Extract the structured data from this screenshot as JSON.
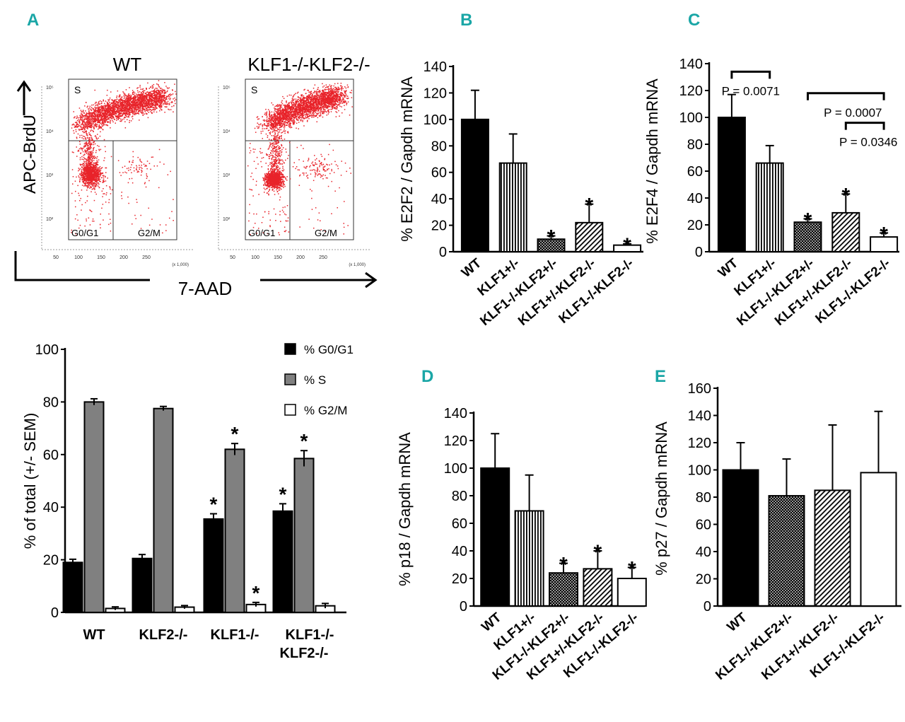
{
  "panel_letters": {
    "a": "A",
    "b": "B",
    "c": "C",
    "d": "D",
    "e": "E"
  },
  "colors": {
    "accent": "#1aa6a6",
    "dots": "#e8232a",
    "bar_dark": "#000000",
    "bar_gray": "#808080"
  },
  "flow": {
    "wt_title": "WT",
    "ko_title": "KLF1-/-KLF2-/-",
    "y_axis_label": "APC-BrdU",
    "x_axis_label": "7-AAD",
    "x_ticks": [
      "50",
      "100",
      "150",
      "200",
      "250"
    ],
    "y_ticks": [
      "10²",
      "10³",
      "10⁴",
      "10⁵"
    ],
    "x_scale_note": "(x 1,000)",
    "gate_s": "S",
    "gate_g0g1": "G0/G1",
    "gate_g2m": "G2/M"
  },
  "chart_data": [
    {
      "id": "A-bottom",
      "type": "bar",
      "ylabel": "% of total (+/- SEM)",
      "xlabel": "",
      "ylim": [
        0,
        100
      ],
      "yticks": [
        0,
        20,
        40,
        60,
        80,
        100
      ],
      "categories": [
        "WT",
        "KLF2-/-",
        "KLF1-/-",
        "KLF1-/-\nKLF2-/-"
      ],
      "legend_position": "top-right",
      "series": [
        {
          "name": "% G0/G1",
          "fill": "black",
          "values": [
            19,
            20.5,
            35.5,
            38.5
          ],
          "errors": [
            1.2,
            1.5,
            2,
            2.8
          ],
          "asterisk": [
            false,
            false,
            true,
            true
          ]
        },
        {
          "name": "% S",
          "fill": "gray",
          "values": [
            80,
            77.5,
            62,
            58.5
          ],
          "errors": [
            1.2,
            0.8,
            2.2,
            3
          ],
          "asterisk": [
            false,
            false,
            true,
            true
          ]
        },
        {
          "name": "% G2/M",
          "fill": "white",
          "values": [
            1.5,
            2,
            3,
            2.5
          ],
          "errors": [
            0.6,
            0.6,
            0.8,
            0.9
          ],
          "asterisk": [
            false,
            false,
            true,
            false
          ]
        }
      ]
    },
    {
      "id": "B",
      "type": "bar",
      "ylabel": "% E2F2  / Gapdh mRNA",
      "ylim": [
        0,
        140
      ],
      "yticks": [
        0,
        20,
        40,
        60,
        80,
        100,
        120,
        140
      ],
      "categories": [
        "WT",
        "KLF1+/-",
        "KLF1-/-KLF2+/-",
        "KLF1+/-KLF2-/-",
        "KLF1-/-KLF2-/-"
      ],
      "values": [
        100,
        67,
        9.5,
        22,
        5
      ],
      "errors": [
        22,
        22,
        2.5,
        14,
        1
      ],
      "fills": [
        "black",
        "vertical",
        "dots",
        "diagonal",
        "white"
      ],
      "asterisk": [
        false,
        false,
        true,
        true,
        true
      ]
    },
    {
      "id": "C",
      "type": "bar",
      "ylabel": "% E2F4  / Gapdh mRNA",
      "ylim": [
        0,
        140
      ],
      "yticks": [
        0,
        20,
        40,
        60,
        80,
        100,
        120,
        140
      ],
      "categories": [
        "WT",
        "KLF1+/-",
        "KLF1-/-KLF2+/-",
        "KLF1+/-KLF2-/-",
        "KLF1-/-KLF2-/-"
      ],
      "values": [
        100,
        66,
        22,
        29,
        11
      ],
      "errors": [
        17,
        13,
        2.5,
        14,
        3
      ],
      "fills": [
        "black",
        "vertical",
        "dots",
        "diagonal",
        "white"
      ],
      "asterisk": [
        false,
        false,
        true,
        true,
        true
      ],
      "annotations": [
        {
          "from": 0,
          "to": 1,
          "bracket_y": 134,
          "text": "P = 0.0071"
        },
        {
          "from": 2,
          "to": 4,
          "bracket_y": 118,
          "text": "P = 0.0007"
        },
        {
          "from": 3,
          "to": 4,
          "bracket_y": 96,
          "text": "P = 0.0346"
        }
      ]
    },
    {
      "id": "D",
      "type": "bar",
      "ylabel": "% p18  / Gapdh mRNA",
      "ylim": [
        0,
        140
      ],
      "yticks": [
        0,
        20,
        40,
        60,
        80,
        100,
        120,
        140
      ],
      "categories": [
        "WT",
        "KLF1+/-",
        "KLF1-/-KLF2+/-",
        "KLF1+/-KLF2-/-",
        "KLF1-/-KLF2-/-"
      ],
      "values": [
        100,
        69,
        24,
        27,
        20
      ],
      "errors": [
        25,
        26,
        7,
        13,
        8
      ],
      "fills": [
        "black",
        "vertical",
        "dots",
        "diagonal",
        "white"
      ],
      "asterisk": [
        false,
        false,
        true,
        true,
        true
      ]
    },
    {
      "id": "E",
      "type": "bar",
      "ylabel": "% p27  / Gapdh mRNA",
      "ylim": [
        0,
        160
      ],
      "yticks": [
        0,
        20,
        40,
        60,
        80,
        100,
        120,
        140,
        160
      ],
      "categories": [
        "WT",
        "KLF1-/-KLF2+/-",
        "KLF1+/-KLF2-/-",
        "KLF1-/-KLF2-/-"
      ],
      "values": [
        100,
        81,
        85,
        98
      ],
      "errors": [
        20,
        27,
        48,
        45
      ],
      "fills": [
        "black",
        "dots",
        "diagonal",
        "white"
      ],
      "asterisk": [
        false,
        false,
        false,
        false
      ]
    }
  ]
}
